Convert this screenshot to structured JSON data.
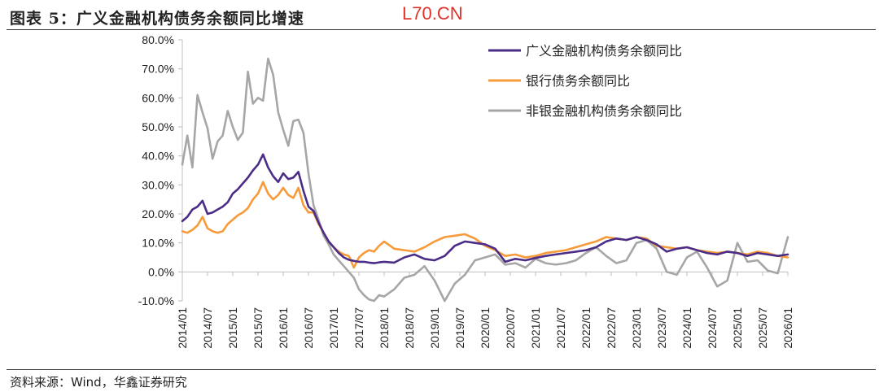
{
  "header": {
    "title": "图表 5：广义金融机构债务余额同比增速",
    "watermark": "L70.CN"
  },
  "footer": {
    "source": "资料来源：Wind，华鑫证券研究"
  },
  "colors": {
    "series0": "#4b2d87",
    "series1": "#f79a3a",
    "series2": "#a6a6a6",
    "axis": "#bfbfbf",
    "text": "#222222"
  },
  "chart_data": {
    "type": "line",
    "title": "图表 5：广义金融机构债务余额同比增速",
    "xlabel": "",
    "ylabel": "",
    "ylim": [
      -10,
      80
    ],
    "yticks": [
      -10,
      0,
      10,
      20,
      30,
      40,
      50,
      60,
      70,
      80
    ],
    "ytick_labels": [
      "-10.0%",
      "0.0%",
      "10.0%",
      "20.0%",
      "30.0%",
      "40.0%",
      "50.0%",
      "60.0%",
      "70.0%",
      "80.0%"
    ],
    "xlim": [
      2014.0,
      2026.0
    ],
    "xticks": [
      2014.0,
      2014.5,
      2015.0,
      2015.5,
      2016.0,
      2016.5,
      2017.0,
      2017.5,
      2018.0,
      2018.5,
      2019.0,
      2019.5,
      2020.0,
      2020.5,
      2021.0,
      2021.5,
      2022.0,
      2022.5,
      2023.0,
      2023.5,
      2024.0,
      2024.5,
      2025.0,
      2025.5,
      2026.0
    ],
    "xtick_labels": [
      "2014/01",
      "2014/07",
      "2015/01",
      "2015/07",
      "2016/01",
      "2016/07",
      "2017/01",
      "2017/07",
      "2018/01",
      "2018/07",
      "2019/01",
      "2019/07",
      "2020/01",
      "2020/07",
      "2021/01",
      "2021/07",
      "2022/01",
      "2022/07",
      "2023/01",
      "2023/07",
      "2024/01",
      "2024/07",
      "2025/01",
      "2025/07",
      "2026/01"
    ],
    "legend_position": "top-right",
    "series": [
      {
        "name": "广义金融机构债务余额同比",
        "x": [
          2014.0,
          2014.1,
          2014.2,
          2014.3,
          2014.4,
          2014.5,
          2014.6,
          2014.7,
          2014.8,
          2014.9,
          2015.0,
          2015.1,
          2015.2,
          2015.3,
          2015.4,
          2015.5,
          2015.6,
          2015.7,
          2015.8,
          2015.9,
          2016.0,
          2016.1,
          2016.2,
          2016.3,
          2016.4,
          2016.5,
          2016.6,
          2016.7,
          2016.8,
          2016.9,
          2017.0,
          2017.1,
          2017.2,
          2017.3,
          2017.4,
          2017.5,
          2017.6,
          2017.7,
          2017.8,
          2017.9,
          2018.0,
          2018.2,
          2018.4,
          2018.6,
          2018.8,
          2019.0,
          2019.2,
          2019.4,
          2019.6,
          2019.8,
          2020.0,
          2020.2,
          2020.4,
          2020.6,
          2020.8,
          2021.0,
          2021.2,
          2021.4,
          2021.6,
          2021.8,
          2022.0,
          2022.2,
          2022.4,
          2022.6,
          2022.8,
          2023.0,
          2023.2,
          2023.4,
          2023.6,
          2023.8,
          2024.0,
          2024.2,
          2024.4,
          2024.6,
          2024.8,
          2025.0,
          2025.2,
          2025.4,
          2025.6,
          2025.8,
          2026.0
        ],
        "values": [
          17.5,
          19.0,
          21.5,
          22.5,
          24.5,
          20.0,
          20.5,
          21.5,
          22.5,
          24.0,
          27.0,
          28.5,
          30.5,
          32.5,
          35.0,
          37.0,
          40.5,
          36.0,
          33.0,
          31.0,
          34.0,
          32.0,
          32.5,
          34.5,
          28.0,
          22.5,
          21.0,
          17.0,
          13.5,
          10.5,
          8.5,
          6.5,
          5.0,
          4.2,
          3.8,
          3.5,
          3.5,
          3.2,
          3.0,
          3.3,
          3.5,
          3.2,
          5.0,
          6.0,
          4.5,
          4.0,
          5.5,
          9.0,
          10.5,
          10.0,
          9.5,
          8.0,
          3.5,
          4.5,
          4.0,
          4.8,
          5.5,
          6.0,
          6.5,
          7.0,
          7.5,
          8.5,
          10.5,
          11.5,
          11.0,
          12.0,
          11.0,
          9.5,
          7.0,
          8.0,
          8.5,
          7.5,
          6.5,
          6.0,
          7.0,
          6.5,
          5.5,
          6.5,
          6.0,
          5.5,
          6.0
        ]
      },
      {
        "name": "银行债务余额同比",
        "x": [
          2014.0,
          2014.1,
          2014.2,
          2014.3,
          2014.4,
          2014.5,
          2014.6,
          2014.7,
          2014.8,
          2014.9,
          2015.0,
          2015.1,
          2015.2,
          2015.3,
          2015.4,
          2015.5,
          2015.6,
          2015.7,
          2015.8,
          2015.9,
          2016.0,
          2016.1,
          2016.2,
          2016.3,
          2016.4,
          2016.5,
          2016.6,
          2016.7,
          2016.8,
          2016.9,
          2017.0,
          2017.1,
          2017.2,
          2017.3,
          2017.4,
          2017.5,
          2017.6,
          2017.7,
          2017.8,
          2017.9,
          2018.0,
          2018.2,
          2018.4,
          2018.6,
          2018.8,
          2019.0,
          2019.2,
          2019.4,
          2019.6,
          2019.8,
          2020.0,
          2020.2,
          2020.4,
          2020.6,
          2020.8,
          2021.0,
          2021.2,
          2021.4,
          2021.6,
          2021.8,
          2022.0,
          2022.2,
          2022.4,
          2022.6,
          2022.8,
          2023.0,
          2023.2,
          2023.4,
          2023.6,
          2023.8,
          2024.0,
          2024.2,
          2024.4,
          2024.6,
          2024.8,
          2025.0,
          2025.2,
          2025.4,
          2025.6,
          2025.8,
          2026.0
        ],
        "values": [
          14.0,
          13.5,
          14.5,
          16.0,
          19.0,
          15.0,
          14.0,
          13.5,
          14.0,
          16.5,
          18.0,
          19.5,
          20.5,
          22.0,
          25.0,
          27.0,
          31.0,
          27.0,
          25.0,
          26.5,
          29.0,
          26.5,
          25.5,
          29.0,
          23.0,
          20.5,
          20.5,
          16.5,
          13.5,
          10.5,
          8.5,
          7.0,
          6.0,
          5.5,
          1.5,
          5.0,
          6.5,
          7.5,
          7.0,
          9.0,
          10.5,
          8.0,
          7.5,
          7.0,
          8.5,
          10.5,
          12.0,
          12.5,
          13.0,
          11.5,
          9.0,
          7.5,
          5.5,
          6.0,
          5.0,
          5.5,
          6.5,
          7.0,
          7.5,
          8.5,
          9.5,
          10.5,
          12.0,
          11.5,
          11.0,
          12.0,
          11.5,
          9.0,
          8.5,
          8.0,
          8.5,
          7.5,
          7.0,
          6.5,
          7.0,
          6.5,
          6.0,
          7.0,
          6.5,
          5.5,
          5.0
        ]
      },
      {
        "name": "非银金融机构债务余额同比",
        "x": [
          2014.0,
          2014.1,
          2014.2,
          2014.3,
          2014.4,
          2014.5,
          2014.6,
          2014.7,
          2014.8,
          2014.9,
          2015.0,
          2015.1,
          2015.2,
          2015.3,
          2015.4,
          2015.5,
          2015.6,
          2015.7,
          2015.8,
          2015.9,
          2016.0,
          2016.1,
          2016.2,
          2016.3,
          2016.4,
          2016.5,
          2016.6,
          2016.7,
          2016.8,
          2016.9,
          2017.0,
          2017.1,
          2017.2,
          2017.3,
          2017.4,
          2017.5,
          2017.6,
          2017.7,
          2017.8,
          2017.9,
          2018.0,
          2018.2,
          2018.4,
          2018.6,
          2018.8,
          2019.0,
          2019.2,
          2019.4,
          2019.6,
          2019.8,
          2020.0,
          2020.2,
          2020.4,
          2020.6,
          2020.8,
          2021.0,
          2021.2,
          2021.4,
          2021.6,
          2021.8,
          2022.0,
          2022.2,
          2022.4,
          2022.6,
          2022.8,
          2023.0,
          2023.2,
          2023.4,
          2023.6,
          2023.8,
          2024.0,
          2024.2,
          2024.4,
          2024.6,
          2024.8,
          2025.0,
          2025.2,
          2025.4,
          2025.6,
          2025.8,
          2026.0
        ],
        "values": [
          37.0,
          47.0,
          36.0,
          61.0,
          55.0,
          49.5,
          39.0,
          45.0,
          47.0,
          55.5,
          50.0,
          45.5,
          48.0,
          69.0,
          58.0,
          60.0,
          59.0,
          73.5,
          68.0,
          55.0,
          49.0,
          43.5,
          52.0,
          52.5,
          48.0,
          34.0,
          23.0,
          18.0,
          12.5,
          9.5,
          6.0,
          4.0,
          2.0,
          0.0,
          -2.0,
          -6.0,
          -8.0,
          -9.5,
          -10.0,
          -8.0,
          -8.5,
          -6.0,
          -2.0,
          -1.0,
          2.0,
          -3.0,
          -10.0,
          -4.0,
          -1.0,
          4.0,
          5.0,
          6.0,
          2.5,
          3.0,
          1.5,
          4.5,
          3.0,
          2.5,
          3.0,
          4.0,
          6.5,
          8.5,
          5.5,
          3.0,
          4.0,
          10.0,
          11.0,
          8.0,
          0.0,
          -1.0,
          5.0,
          7.0,
          1.5,
          -5.0,
          -3.0,
          10.0,
          3.5,
          4.0,
          0.5,
          -0.5,
          12.0
        ]
      }
    ]
  }
}
